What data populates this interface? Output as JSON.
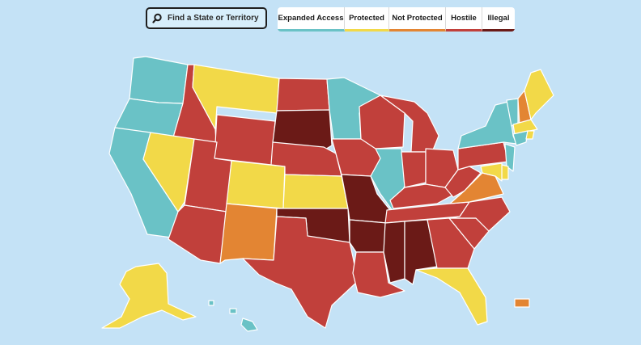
{
  "search": {
    "placeholder": "Find a State or Territory",
    "icon": "search-icon"
  },
  "legend": [
    {
      "key": "expanded",
      "label": "Expanded Access",
      "color": "#6ac2c6"
    },
    {
      "key": "protected",
      "label": "Protected",
      "color": "#f2d948"
    },
    {
      "key": "not_protected",
      "label": "Not Protected",
      "color": "#e38533"
    },
    {
      "key": "hostile",
      "label": "Hostile",
      "color": "#c1403b"
    },
    {
      "key": "illegal",
      "label": "Illegal",
      "color": "#6b1a17"
    }
  ],
  "states": {
    "WA": "expanded",
    "OR": "expanded",
    "CA": "expanded",
    "ID": "hostile",
    "NV": "protected",
    "MT": "protected",
    "WY": "hostile",
    "UT": "hostile",
    "AZ": "hostile",
    "CO": "protected",
    "NM": "not_protected",
    "ND": "hostile",
    "SD": "illegal",
    "NE": "hostile",
    "KS": "protected",
    "OK": "illegal",
    "TX": "hostile",
    "MN": "expanded",
    "IA": "hostile",
    "MO": "illegal",
    "AR": "illegal",
    "LA": "hostile",
    "WI": "hostile",
    "IL": "expanded",
    "MI": "hostile",
    "IN": "hostile",
    "OH": "hostile",
    "KY": "hostile",
    "TN": "hostile",
    "MS": "illegal",
    "AL": "illegal",
    "GA": "hostile",
    "FL": "protected",
    "SC": "hostile",
    "NC": "hostile",
    "VA": "not_protected",
    "WV": "hostile",
    "PA": "hostile",
    "NY": "expanded",
    "VT": "expanded",
    "NH": "not_protected",
    "ME": "protected",
    "MA": "protected",
    "CT": "expanded",
    "RI": "protected",
    "NJ": "expanded",
    "DE": "protected",
    "MD": "protected",
    "AK": "protected",
    "HI": "expanded",
    "PR": "not_protected"
  }
}
